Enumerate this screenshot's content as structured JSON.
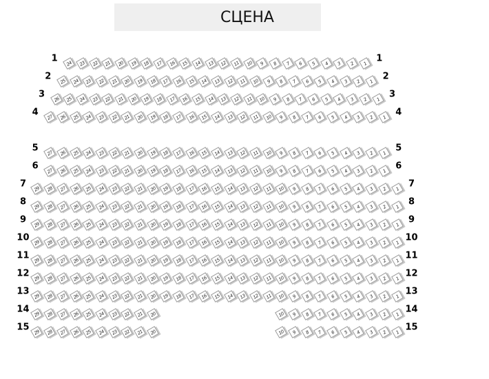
{
  "stage": {
    "label": "СЦЕНА"
  },
  "colors": {
    "seat_fill": "#ffffff",
    "seat_border": "#9a9a9a",
    "seat_shadow": "#c8c8c8",
    "stage_bg": "#efefef"
  },
  "rows": [
    {
      "label": "1",
      "max_seat": 24,
      "seats": [
        [
          24,
          1
        ]
      ]
    },
    {
      "label": "2",
      "max_seat": 25,
      "seats": [
        [
          25,
          1
        ]
      ]
    },
    {
      "label": "3",
      "max_seat": 26,
      "seats": [
        [
          26,
          1
        ]
      ]
    },
    {
      "label": "4",
      "max_seat": 27,
      "seats": [
        [
          27,
          1
        ]
      ]
    },
    {
      "label": "5",
      "max_seat": 27,
      "seats": [
        [
          27,
          1
        ]
      ]
    },
    {
      "label": "6",
      "max_seat": 27,
      "seats": [
        [
          27,
          1
        ]
      ]
    },
    {
      "label": "7",
      "max_seat": 29,
      "seats": [
        [
          29,
          1
        ]
      ]
    },
    {
      "label": "8",
      "max_seat": 29,
      "seats": [
        [
          29,
          1
        ]
      ]
    },
    {
      "label": "9",
      "max_seat": 29,
      "seats": [
        [
          29,
          1
        ]
      ]
    },
    {
      "label": "10",
      "max_seat": 29,
      "seats": [
        [
          29,
          1
        ]
      ]
    },
    {
      "label": "11",
      "max_seat": 29,
      "seats": [
        [
          29,
          1
        ]
      ]
    },
    {
      "label": "12",
      "max_seat": 29,
      "seats": [
        [
          29,
          1
        ]
      ]
    },
    {
      "label": "13",
      "max_seat": 29,
      "seats": [
        [
          29,
          1
        ]
      ]
    },
    {
      "label": "14",
      "max_seat": 29,
      "seats": [
        [
          29,
          20
        ],
        [
          10,
          1
        ]
      ]
    },
    {
      "label": "15",
      "max_seat": 29,
      "seats": [
        [
          29,
          20
        ],
        [
          10,
          1
        ]
      ]
    }
  ]
}
